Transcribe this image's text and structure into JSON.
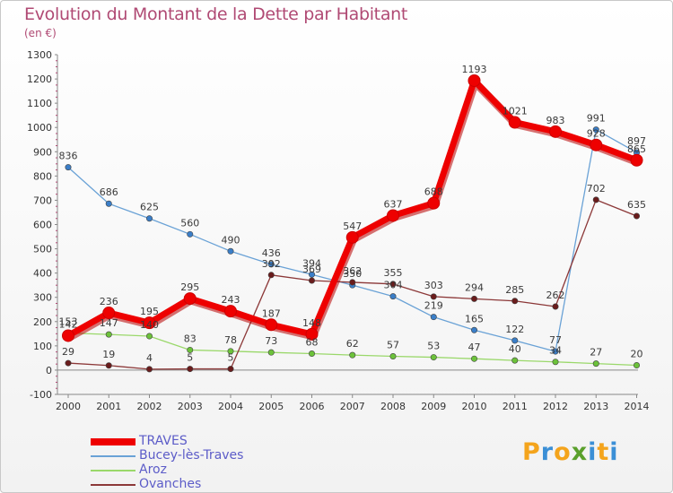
{
  "title": "Evolution du Montant de la Dette par Habitant",
  "subtitle": "(en €)",
  "logo": {
    "letters": [
      "P",
      "r",
      "o",
      "x",
      "i",
      "t",
      "i"
    ],
    "colors": [
      "#f4a41c",
      "#3b8fd6",
      "#f4a41c",
      "#5aa02c",
      "#3b8fd6",
      "#f4a41c",
      "#3b8fd6"
    ]
  },
  "chart_data": {
    "type": "line",
    "title": "Evolution du Montant de la Dette par Habitant",
    "subtitle": "(en €)",
    "x": [
      2000,
      2001,
      2002,
      2003,
      2004,
      2005,
      2006,
      2007,
      2008,
      2009,
      2010,
      2011,
      2012,
      2013,
      2014
    ],
    "x_tick_labels": [
      "2000",
      "2001",
      "2002",
      "2003",
      "2004",
      "2005",
      "2006",
      "2007",
      "2008",
      "2009",
      "2010",
      "2011",
      "2012",
      "2013",
      "2014"
    ],
    "ylim": [
      -100,
      1300
    ],
    "y_ticks": [
      -100,
      0,
      100,
      200,
      300,
      400,
      500,
      600,
      700,
      800,
      900,
      1000,
      1100,
      1200,
      1300
    ],
    "y_tick_labels": [
      "-100",
      "0",
      "100",
      "200",
      "300",
      "400",
      "500",
      "600",
      "700",
      "800",
      "900",
      "1000",
      "1100",
      "1200",
      "1300"
    ],
    "grid": false,
    "legend_position": "bottom-left",
    "series": [
      {
        "name": "TRAVES",
        "color": "#ee0000",
        "marker_color": "#ee0000",
        "values": [
          142,
          236,
          195,
          295,
          243,
          187,
          148,
          547,
          637,
          688,
          1193,
          1021,
          983,
          928,
          865
        ],
        "labels": [
          "142",
          "236",
          "195",
          "295",
          "243",
          "187",
          "148",
          "547",
          "637",
          "688",
          "1193",
          "1021",
          "983",
          "928",
          "865"
        ]
      },
      {
        "name": "Bucey-lès-Traves",
        "color": "#6aa2d6",
        "marker_color": "#3a7ec8",
        "values": [
          836,
          686,
          625,
          560,
          490,
          436,
          394,
          350,
          304,
          219,
          165,
          122,
          77,
          991,
          897
        ],
        "labels": [
          "836",
          "686",
          "625",
          "560",
          "490",
          "436",
          "394",
          "350",
          "304",
          "219",
          "165",
          "122",
          "77",
          "991",
          "897"
        ]
      },
      {
        "name": "Aroz",
        "color": "#9ad86a",
        "marker_color": "#6cc23a",
        "values": [
          153,
          147,
          140,
          83,
          78,
          73,
          68,
          62,
          57,
          53,
          47,
          40,
          34,
          27,
          20
        ],
        "labels": [
          "153",
          "147",
          "140",
          "83",
          "78",
          "73",
          "68",
          "62",
          "57",
          "53",
          "47",
          "40",
          "34",
          "27",
          "20"
        ]
      },
      {
        "name": "Ovanches",
        "color": "#8c3838",
        "marker_color": "#6a1c1c",
        "values": [
          29,
          19,
          4,
          5,
          5,
          392,
          369,
          362,
          355,
          303,
          294,
          285,
          262,
          702,
          635
        ],
        "labels": [
          "29",
          "19",
          "4",
          "5",
          "5",
          "392",
          "369",
          "362",
          "355",
          "303",
          "294",
          "285",
          "262",
          "702",
          "635"
        ]
      }
    ]
  }
}
